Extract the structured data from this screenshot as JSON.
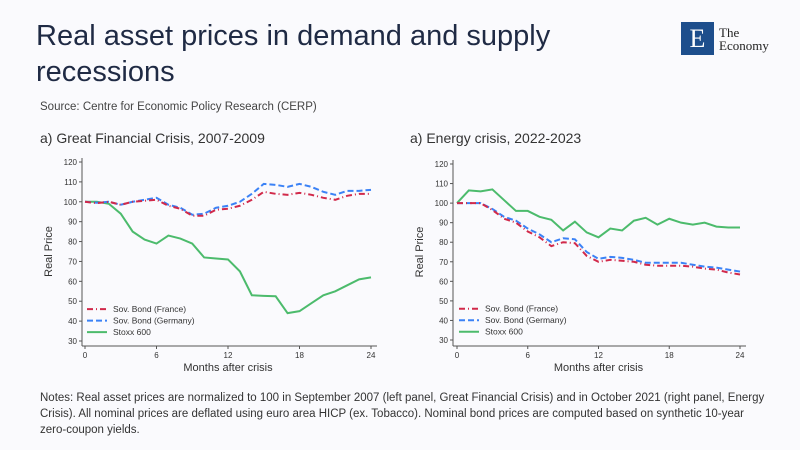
{
  "header": {
    "title": "Real asset prices in demand and supply recessions",
    "source": "Source: Centre for Economic Policy Research (CERP)",
    "logo_text": [
      "The",
      "Economy"
    ],
    "logo_letter": "E"
  },
  "notes": "Notes: Real asset prices are normalized to 100 in September 2007 (left panel, Great Financial Crisis) and in October 2021 (right panel, Energy Crisis). All nominal prices are deflated using euro area HICP (ex. Tobacco). Nominal bond prices are computed based on synthetic 10-year zero-coupon yields.",
  "colors": {
    "stoxx": "#4cbb6c",
    "germany": "#3b82f6",
    "france": "#d1294a",
    "brand": "#1d4e8c"
  },
  "chart_data": [
    {
      "type": "line",
      "title": "a) Great Financial Crisis, 2007-2009",
      "xlabel": "Months after crisis",
      "ylabel": "Real Price",
      "xlim": [
        0,
        24
      ],
      "ylim": [
        30,
        120
      ],
      "xticks": [
        0,
        6,
        12,
        18,
        24
      ],
      "yticks": [
        30,
        40,
        50,
        60,
        70,
        80,
        90,
        100,
        110,
        120
      ],
      "legend": "bottom-left",
      "grid": false,
      "x": [
        0,
        1,
        2,
        3,
        4,
        5,
        6,
        7,
        8,
        9,
        10,
        11,
        12,
        13,
        14,
        15,
        16,
        17,
        18,
        19,
        20,
        21,
        22,
        23,
        24
      ],
      "series": [
        {
          "name": "Stoxx 600",
          "style": "solid",
          "values": [
            100,
            100,
            99,
            94,
            85,
            81,
            79,
            83,
            81.5,
            79,
            72,
            71.5,
            71,
            65,
            53,
            52.7,
            52.5,
            44,
            45,
            49,
            53,
            55,
            58,
            61,
            62
          ]
        },
        {
          "name": "Sov. Bond (Germany)",
          "style": "dash",
          "values": [
            100,
            99.5,
            100,
            98.5,
            100,
            101,
            102,
            98.5,
            97,
            93.5,
            94,
            97,
            98,
            100,
            104,
            109,
            108.5,
            107.5,
            109,
            107.5,
            105,
            103.5,
            105.5,
            105.5,
            106
          ]
        },
        {
          "name": "Sov. Bond (France)",
          "style": "dashdot",
          "values": [
            100,
            99.3,
            100,
            98.5,
            100,
            100.5,
            101,
            98,
            96.5,
            93,
            93,
            96,
            96.5,
            98,
            101,
            105,
            104,
            103.5,
            104.5,
            103.5,
            102,
            101,
            103,
            104,
            104
          ]
        }
      ]
    },
    {
      "type": "line",
      "title": "a) Energy crisis, 2022-2023",
      "xlabel": "Months after crisis",
      "ylabel": "Real Price",
      "xlim": [
        0,
        24
      ],
      "ylim": [
        30,
        120
      ],
      "xticks": [
        0,
        6,
        12,
        18,
        24
      ],
      "yticks": [
        30,
        40,
        50,
        60,
        70,
        80,
        90,
        100,
        110,
        120
      ],
      "legend": "bottom-left",
      "grid": false,
      "x": [
        0,
        1,
        2,
        3,
        4,
        5,
        6,
        7,
        8,
        9,
        10,
        11,
        12,
        13,
        14,
        15,
        16,
        17,
        18,
        19,
        20,
        21,
        22,
        23,
        24
      ],
      "series": [
        {
          "name": "Stoxx 600",
          "style": "solid",
          "values": [
            100,
            106.5,
            106,
            107,
            101.5,
            96,
            96,
            93,
            91.5,
            86,
            90.5,
            85,
            82.5,
            87,
            86,
            91,
            92.5,
            89,
            92,
            90,
            89,
            90,
            88,
            87.5,
            87.5
          ]
        },
        {
          "name": "Sov. Bond (Germany)",
          "style": "dash",
          "values": [
            100,
            100,
            100,
            97,
            93,
            91,
            87,
            84,
            80,
            82,
            81.5,
            75,
            71.5,
            72.5,
            72,
            71,
            69.5,
            69.5,
            69.5,
            69.5,
            68.5,
            67.5,
            67,
            66,
            65
          ]
        },
        {
          "name": "Sov. Bond (France)",
          "style": "dashdot",
          "values": [
            100,
            100,
            100,
            96.5,
            92,
            90,
            85.5,
            82.5,
            78,
            80,
            79.5,
            73,
            70,
            71,
            70.5,
            70,
            68.5,
            68,
            68,
            68,
            67.5,
            66.5,
            66,
            64.5,
            63.5
          ]
        }
      ]
    }
  ]
}
